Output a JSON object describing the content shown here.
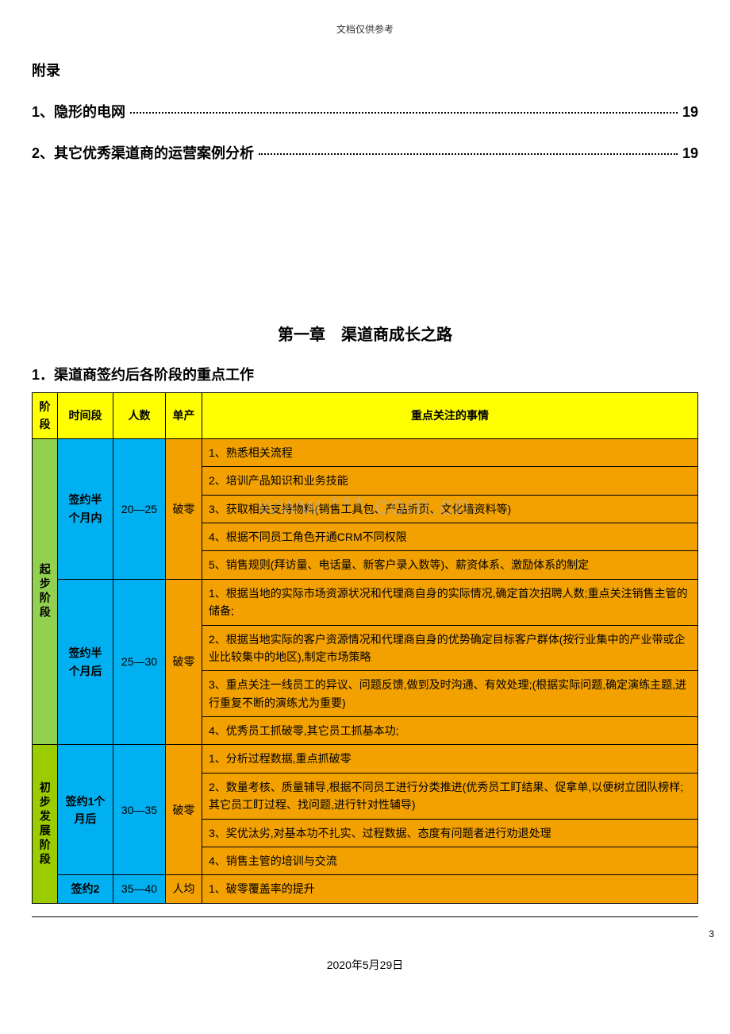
{
  "header": {
    "notice": "文档仅供参考"
  },
  "appendix": {
    "title": "附录",
    "items": [
      {
        "label": "1、隐形的电网",
        "page": "19"
      },
      {
        "label": "2、其它优秀渠道商的运营案例分析",
        "page": "19"
      }
    ]
  },
  "chapter": {
    "title": "第一章　渠道商成长之路",
    "section": "1．渠道商签约后各阶段的重点工作"
  },
  "table": {
    "colors": {
      "header_bg": "#ffff00",
      "stage_green": "#92d050",
      "stage_olive": "#9acc00",
      "time_count_blue": "#00b0f0",
      "focus_bg": "#f2a100",
      "border": "#000000",
      "text": "#000000"
    },
    "header": {
      "stage": "阶段",
      "time": "时间段",
      "count": "人数",
      "yield": "单产",
      "focus": "重点关注的事情"
    },
    "rows": [
      {
        "stage": "起步阶段",
        "stage_color": "#92d050",
        "blocks": [
          {
            "time": "签约半个月内",
            "count": "20—25",
            "yield": "破零",
            "focus": [
              "1、熟悉相关流程",
              "2、培训产品知识和业务技能",
              "3、获取相关支持物料(销售工具包、产品折页、文化墙资料等)",
              "4、根据不同员工角色开通CRM不同权限",
              "5、销售规则(拜访量、电话量、新客户录入数等)、薪资体系、激励体系的制定"
            ]
          },
          {
            "time": "签约半个月后",
            "count": "25—30",
            "yield": "破零",
            "focus": [
              "1、根据当地的实际市场资源状况和代理商自身的实际情况,确定首次招聘人数;重点关注销售主管的储备;",
              "2、根据当地实际的客户资源情况和代理商自身的优势确定目标客户群体(按行业集中的产业带或企业比较集中的地区),制定市场策略",
              "3、重点关注一线员工的异议、问题反馈,做到及时沟通、有效处理;(根据实际问题,确定演练主题,进行重复不断的演练尤为重要)",
              "4、优秀员工抓破零,其它员工抓基本功;"
            ]
          }
        ]
      },
      {
        "stage": "初步发展阶段",
        "stage_color": "#9acc00",
        "blocks": [
          {
            "time": "签约1个月后",
            "count": "30—35",
            "yield": "破零",
            "focus": [
              "1、分析过程数据,重点抓破零",
              "2、数量考核、质量辅导,根据不同员工进行分类推进(优秀员工盯结果、促拿单,以便树立团队榜样;其它员工盯过程、找问题,进行针对性辅导)",
              "3、奖优汰劣,对基本功不扎实、过程数据、态度有问题者进行劝退处理",
              "4、销售主管的培训与交流"
            ]
          },
          {
            "time": "签约2",
            "count": "35—40",
            "yield": "人均",
            "focus": [
              "1、破零覆盖率的提升"
            ]
          }
        ]
      }
    ]
  },
  "footer": {
    "date": "2020年5月29日",
    "page": "3"
  },
  "watermark": "www.***.com.cn"
}
